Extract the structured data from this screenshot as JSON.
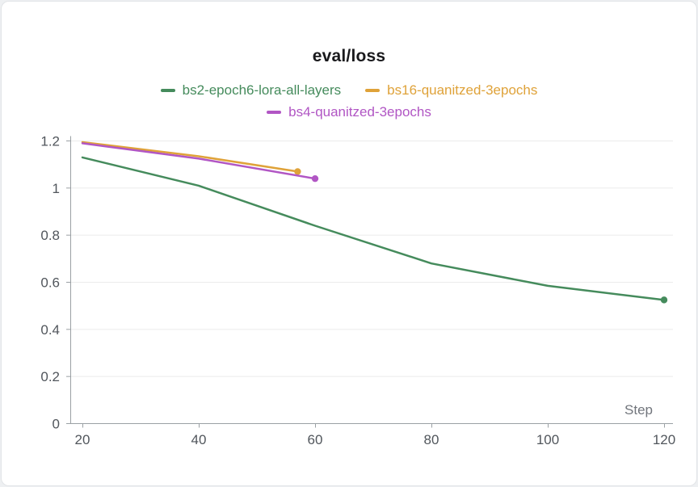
{
  "card": {
    "title": "eval/loss"
  },
  "chart_data": {
    "type": "line",
    "title": "eval/loss",
    "xlabel": "Step",
    "ylabel": "",
    "xlim": [
      20,
      120
    ],
    "ylim": [
      0,
      1.2
    ],
    "x_ticks": [
      20,
      40,
      60,
      80,
      100,
      120
    ],
    "y_ticks": [
      0,
      0.2,
      0.4,
      0.6,
      0.8,
      1,
      1.2
    ],
    "grid": "horizontal",
    "legend_position": "top",
    "colors": {
      "grid": "#ebebeb",
      "axis": "#9aa0a4",
      "tick_label": "#51565c",
      "axis_label": "#71757c",
      "title": "#19191c"
    },
    "series": [
      {
        "name": "bs2-epoch6-lora-all-layers",
        "color": "#458b5c",
        "x": [
          20,
          40,
          60,
          80,
          100,
          120
        ],
        "y": [
          1.13,
          1.01,
          0.84,
          0.68,
          0.585,
          0.525
        ],
        "endpoint_dot": true
      },
      {
        "name": "bs16-quanitzed-3epochs",
        "color": "#dfa239",
        "x": [
          20,
          40,
          57
        ],
        "y": [
          1.195,
          1.135,
          1.07
        ],
        "endpoint_dot": true
      },
      {
        "name": "bs4-quanitzed-3epochs",
        "color": "#b156c4",
        "x": [
          20,
          40,
          60
        ],
        "y": [
          1.19,
          1.125,
          1.04
        ],
        "endpoint_dot": true
      }
    ]
  }
}
